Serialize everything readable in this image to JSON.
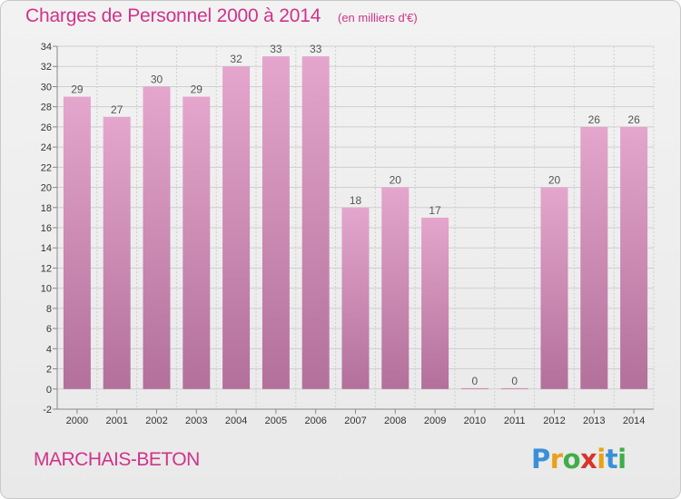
{
  "header": {
    "title": "Charges de Personnel 2000 à 2014",
    "unit": "(en milliers d'€)"
  },
  "footer": {
    "commune": "MARCHAIS-BETON",
    "logo": {
      "letters": [
        "P",
        "r",
        "o",
        "x",
        "i",
        "t",
        "i"
      ],
      "colors": [
        "#3b8fd9",
        "#e8a21a",
        "#3fae49",
        "#d9342b",
        "#e8a21a",
        "#3b8fd9",
        "#3fae49"
      ]
    }
  },
  "chart_data": {
    "type": "bar",
    "title": "Charges de Personnel 2000 à 2014",
    "categories": [
      "2000",
      "2001",
      "2002",
      "2003",
      "2004",
      "2005",
      "2006",
      "2007",
      "2008",
      "2009",
      "2010",
      "2011",
      "2012",
      "2013",
      "2014"
    ],
    "values": [
      29,
      27,
      30,
      29,
      32,
      33,
      33,
      18,
      20,
      17,
      0,
      0,
      20,
      26,
      26
    ],
    "ylim": [
      -2,
      34
    ],
    "yticks": [
      -2,
      0,
      2,
      4,
      6,
      8,
      10,
      12,
      14,
      16,
      18,
      20,
      22,
      24,
      26,
      28,
      30,
      32,
      34
    ],
    "grid": true,
    "colors": {
      "bar_top": "#e4a6cc",
      "bar_bottom": "#b2709a",
      "grid": "#cfcfcf",
      "axis": "#888888"
    }
  }
}
